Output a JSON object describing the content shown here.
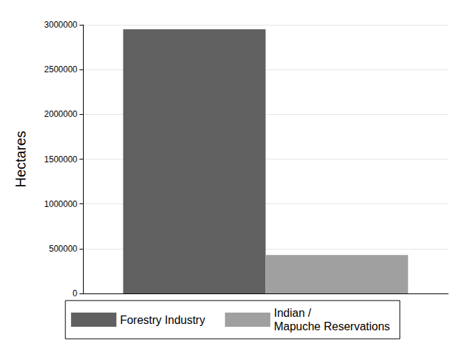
{
  "chart_data": {
    "type": "bar",
    "ylabel": "Hectares",
    "categories": [
      null
    ],
    "series": [
      {
        "name": "Forestry Industry",
        "color": "#606060",
        "values": [
          2950000
        ]
      },
      {
        "name": "Indian /\nMapuche Reservations",
        "color": "#a0a0a0",
        "values": [
          430000
        ]
      }
    ],
    "ylim": [
      0,
      3000000
    ],
    "yticks": [
      0,
      500000,
      1000000,
      1500000,
      2000000,
      2500000,
      3000000
    ],
    "grid": true,
    "legend": "bottom",
    "data_labels": false
  }
}
